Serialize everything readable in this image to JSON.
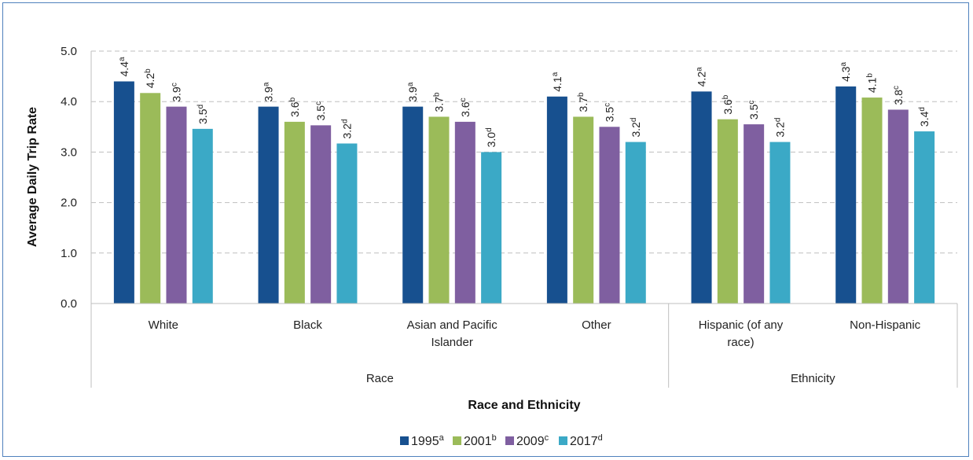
{
  "chart_data": {
    "type": "bar",
    "ylabel": "Average Daily Trip Rate",
    "xlabel": "Race and Ethnicity",
    "ylim": [
      0,
      5
    ],
    "yticks": [
      "0.0",
      "1.0",
      "2.0",
      "3.0",
      "4.0",
      "5.0"
    ],
    "grid": true,
    "legend_position": "bottom",
    "categories": [
      "White",
      "Black",
      "Asian and Pacific Islander",
      "Other",
      "Hispanic (of any race)",
      "Non-Hispanic"
    ],
    "category_lines": [
      [
        "White"
      ],
      [
        "Black"
      ],
      [
        "Asian and Pacific",
        "Islander"
      ],
      [
        "Other"
      ],
      [
        "Hispanic (of any",
        "race)"
      ],
      [
        "Non-Hispanic"
      ]
    ],
    "groups": [
      {
        "name": "Race",
        "categories": [
          "White",
          "Black",
          "Asian and Pacific Islander",
          "Other"
        ]
      },
      {
        "name": "Ethnicity",
        "categories": [
          "Hispanic (of any race)",
          "Non-Hispanic"
        ]
      }
    ],
    "series": [
      {
        "name": "1995",
        "sup": "a",
        "color": "#17508f",
        "values": [
          4.4,
          3.9,
          3.9,
          4.1,
          4.2,
          4.3
        ],
        "labels": [
          "4.4",
          "3.9",
          "3.9",
          "4.1",
          "4.2",
          "4.3"
        ]
      },
      {
        "name": "2001",
        "sup": "b",
        "color": "#9bbb59",
        "values": [
          4.17,
          3.6,
          3.7,
          3.7,
          3.65,
          4.08
        ],
        "labels": [
          "4.2",
          "3.6",
          "3.7",
          "3.7",
          "3.6",
          "4.1"
        ]
      },
      {
        "name": "2009",
        "sup": "c",
        "color": "#7f5fa0",
        "values": [
          3.9,
          3.53,
          3.6,
          3.5,
          3.55,
          3.84
        ],
        "labels": [
          "3.9",
          "3.5",
          "3.6",
          "3.5",
          "3.5",
          "3.8"
        ]
      },
      {
        "name": "2017",
        "sup": "d",
        "color": "#3ba9c6",
        "values": [
          3.46,
          3.17,
          3.0,
          3.2,
          3.2,
          3.41
        ],
        "labels": [
          "3.5",
          "3.2",
          "3.0",
          "3.2",
          "3.2",
          "3.4"
        ]
      }
    ]
  }
}
